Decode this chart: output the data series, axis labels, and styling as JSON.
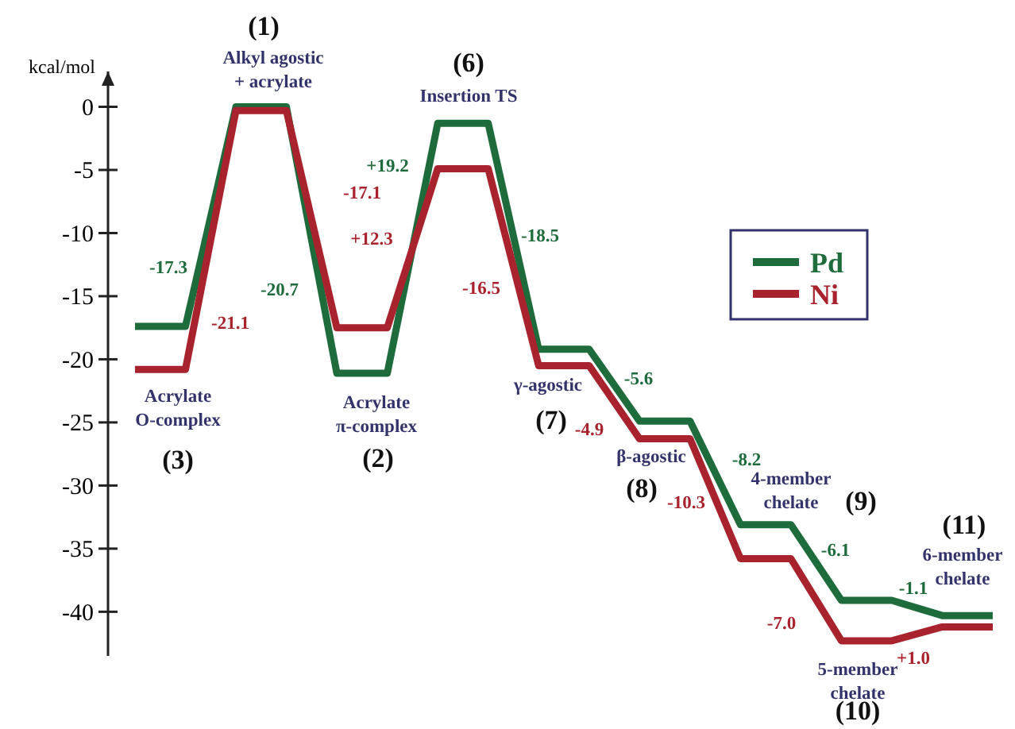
{
  "chart_data": {
    "type": "line",
    "ylabel": "kcal/mol",
    "categories": [
      null,
      null,
      null,
      null,
      null,
      null,
      null,
      null,
      null,
      null,
      null,
      null,
      null,
      null,
      null,
      null,
      null,
      null
    ],
    "series": [
      {
        "name": "Pd",
        "color": "#1e6b3c",
        "values": [
          -17.4,
          -17.4,
          0,
          0,
          -21.1,
          -21.1,
          -1.3,
          -1.3,
          -19.2,
          -19.2,
          -24.9,
          -24.9,
          -33.1,
          -33.1,
          -39.1,
          -39.1,
          -40.3,
          -40.3
        ]
      },
      {
        "name": "Ni",
        "color": "#a8232d",
        "values": [
          -20.8,
          -20.8,
          -0.3,
          -0.3,
          -17.5,
          -17.5,
          -4.9,
          -4.9,
          -20.5,
          -20.5,
          -26.3,
          -26.3,
          -35.8,
          -35.8,
          -42.3,
          -42.3,
          -41.2,
          -41.2
        ]
      }
    ],
    "ylim": [
      -43.5,
      2.8
    ],
    "yticks": [
      0,
      -5,
      -10,
      -15,
      -20,
      -25,
      -30,
      -35,
      -40
    ],
    "tick_labels": "y",
    "grid": false,
    "legend": "right",
    "marker": "none",
    "line_style": "solid",
    "annotations": [
      "(1)",
      "Alkyl agostic + acrylate",
      "(6)",
      "Insertion TS",
      "-17.3",
      "-21.1",
      "-20.7",
      "-17.1",
      "+19.2",
      "+12.3",
      "-18.5",
      "-16.5",
      "Acrylate O-complex",
      "(3)",
      "Acrylate π-complex",
      "(2)",
      "γ-agostic",
      "(7)",
      "-5.6",
      "-4.9",
      "β-agostic",
      "(8)",
      "-10.3",
      "-8.2",
      "4-member chelate",
      "(9)",
      "-6.1",
      "(11)",
      "6-member chelate",
      "-1.1",
      "-7.0",
      "+1.0",
      "5-member chelate",
      "(10)"
    ]
  }
}
